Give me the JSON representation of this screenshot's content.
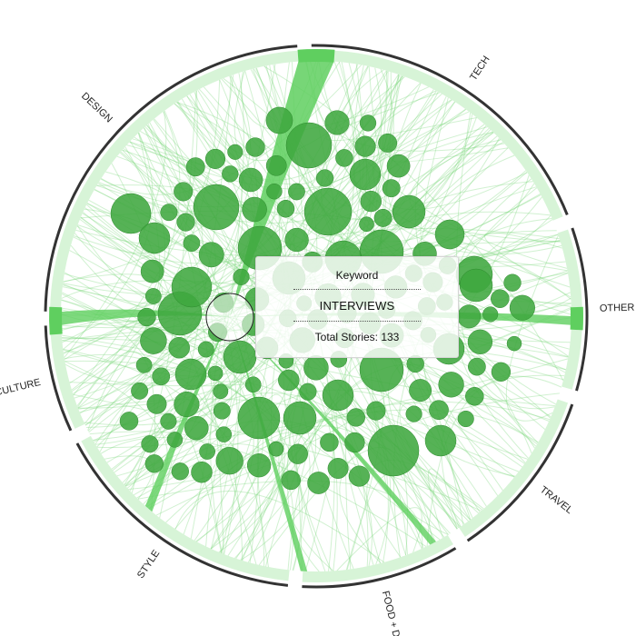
{
  "categories": [
    {
      "name": "TECH",
      "label": "TECH",
      "start": -1,
      "end": 68
    },
    {
      "name": "OTHER",
      "label": "OTHER",
      "start": 71,
      "end": 106
    },
    {
      "name": "TRAVEL",
      "label": "TRAVEL",
      "start": 109,
      "end": 146
    },
    {
      "name": "FOOD + DRINK",
      "label": "FOOD + DRINK",
      "start": 149,
      "end": 183
    },
    {
      "name": "STYLE",
      "label": "STYLE",
      "start": 186,
      "end": 242
    },
    {
      "name": "CULTURE",
      "label": "CULTURE",
      "start": 245,
      "end": 268
    },
    {
      "name": "DESIGN",
      "label": "DESIGN",
      "start": 271,
      "end": 356
    }
  ],
  "tooltip": {
    "header": "Keyword",
    "keyword": "INTERVIEWS",
    "total": "Total Stories: 133"
  },
  "colors": {
    "bubble": "#3fa73f",
    "bubble_stroke": "#2f8a2f",
    "link": "#7bd67b",
    "rim": "#333333",
    "highlight": "#5fcf5f"
  }
}
